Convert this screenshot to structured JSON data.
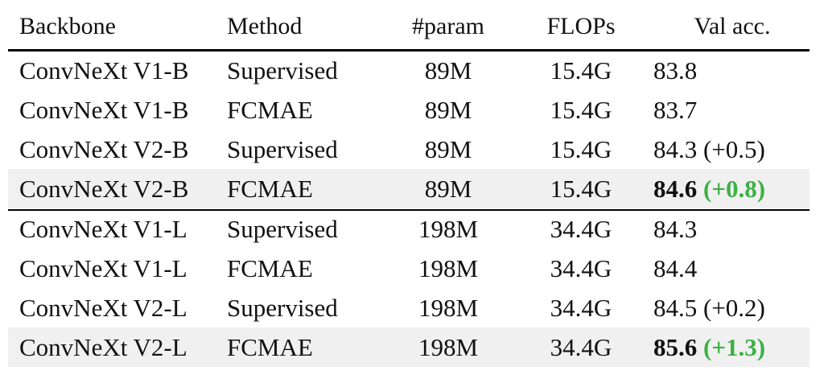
{
  "table": {
    "headers": {
      "backbone": "Backbone",
      "method": "Method",
      "param": "#param",
      "flops": "FLOPs",
      "val_acc": "Val acc."
    },
    "rows": [
      {
        "backbone": "ConvNeXt V1-B",
        "method": "Supervised",
        "param": "89M",
        "flops": "15.4G",
        "val": "83.8",
        "delta": "",
        "bold": false
      },
      {
        "backbone": "ConvNeXt V1-B",
        "method": "FCMAE",
        "param": "89M",
        "flops": "15.4G",
        "val": "83.7",
        "delta": "",
        "bold": false
      },
      {
        "backbone": "ConvNeXt V2-B",
        "method": "Supervised",
        "param": "89M",
        "flops": "15.4G",
        "val": "84.3",
        "delta": "(+0.5)",
        "bold": false
      },
      {
        "backbone": "ConvNeXt V2-B",
        "method": "FCMAE",
        "param": "89M",
        "flops": "15.4G",
        "val": "84.6",
        "delta": "(+0.8)",
        "bold": true
      },
      {
        "backbone": "ConvNeXt V1-L",
        "method": "Supervised",
        "param": "198M",
        "flops": "34.4G",
        "val": "84.3",
        "delta": "",
        "bold": false
      },
      {
        "backbone": "ConvNeXt V1-L",
        "method": "FCMAE",
        "param": "198M",
        "flops": "34.4G",
        "val": "84.4",
        "delta": "",
        "bold": false
      },
      {
        "backbone": "ConvNeXt V2-L",
        "method": "Supervised",
        "param": "198M",
        "flops": "34.4G",
        "val": "84.5",
        "delta": "(+0.2)",
        "bold": false
      },
      {
        "backbone": "ConvNeXt V2-L",
        "method": "FCMAE",
        "param": "198M",
        "flops": "34.4G",
        "val": "85.6",
        "delta": "(+1.3)",
        "bold": true
      }
    ]
  },
  "colors": {
    "highlight_row": "#f0f0f0",
    "delta_highlight": "#3cb043",
    "text": "#111111"
  }
}
